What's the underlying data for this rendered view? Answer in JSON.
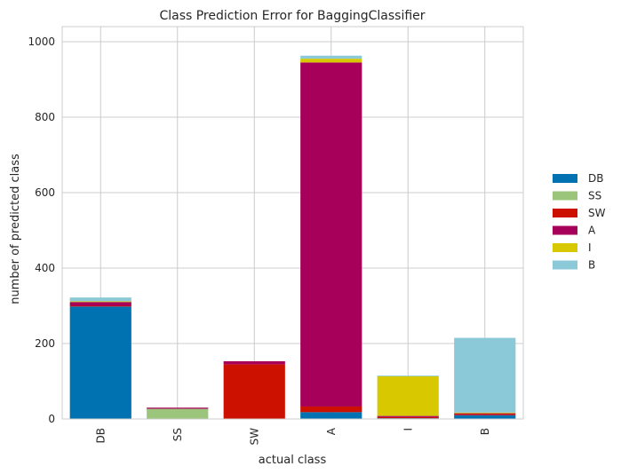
{
  "chart_data": {
    "type": "bar",
    "stacked": true,
    "title": "Class Prediction Error for BaggingClassifier",
    "xlabel": "actual class",
    "ylabel": "number of predicted class",
    "categories": [
      "DB",
      "SS",
      "SW",
      "A",
      "I",
      "B"
    ],
    "ylim": [
      0,
      1040
    ],
    "yticks": [
      0,
      200,
      400,
      600,
      800,
      1000
    ],
    "grid": true,
    "legend_position": "right",
    "series": [
      {
        "name": "DB",
        "color": "#0072b2",
        "values": [
          298,
          0,
          0,
          18,
          2,
          10
        ]
      },
      {
        "name": "SS",
        "color": "#9cc57c",
        "values": [
          0,
          27,
          0,
          0,
          0,
          0
        ]
      },
      {
        "name": "SW",
        "color": "#cc1100",
        "values": [
          2,
          0,
          145,
          15,
          3,
          3
        ]
      },
      {
        "name": "A",
        "color": "#a7005b",
        "values": [
          10,
          3,
          8,
          912,
          3,
          2
        ]
      },
      {
        "name": "I",
        "color": "#d7c800",
        "values": [
          2,
          0,
          0,
          10,
          105,
          2
        ]
      },
      {
        "name": "B",
        "color": "#8bc9d8",
        "values": [
          10,
          0,
          0,
          8,
          2,
          198
        ]
      }
    ]
  }
}
